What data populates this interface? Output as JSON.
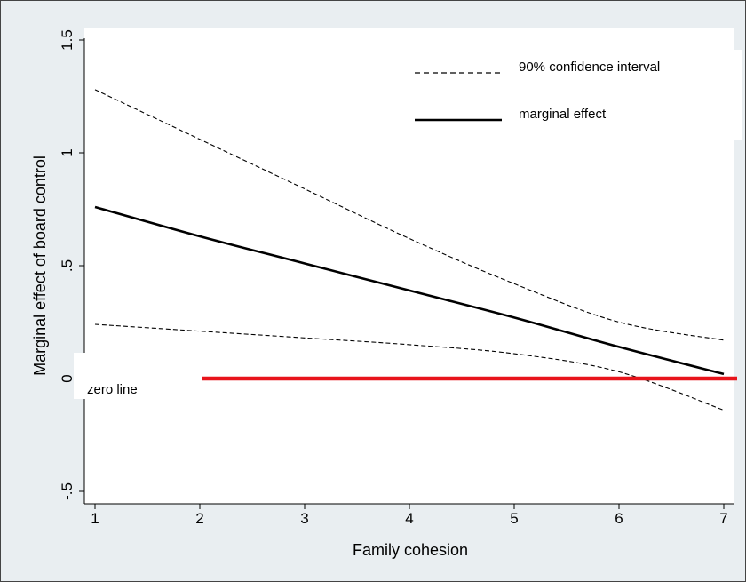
{
  "chart_data": {
    "type": "line",
    "title": "",
    "xlabel": "Family cohesion",
    "ylabel": "Marginal effect of board control",
    "xlim": [
      1,
      7
    ],
    "ylim": [
      -0.5,
      1.5
    ],
    "xticks": [
      1,
      2,
      3,
      4,
      5,
      6,
      7
    ],
    "xtick_labels": [
      "1",
      "2",
      "3",
      "4",
      "5",
      "6",
      "7"
    ],
    "yticks": [
      -0.5,
      0,
      0.5,
      1,
      1.5
    ],
    "ytick_labels": [
      "-.5",
      "0",
      ".5",
      "1",
      "1.5"
    ],
    "grid": false,
    "legend_position": "top-right",
    "series": [
      {
        "name": "90% confidence interval",
        "style": "dashed",
        "color": "#000000",
        "x": [
          1,
          2,
          3,
          4,
          5,
          6,
          7
        ],
        "y": [
          1.28,
          1.06,
          0.84,
          0.62,
          0.42,
          0.25,
          0.17
        ]
      },
      {
        "name": "90% confidence interval",
        "style": "dashed",
        "color": "#000000",
        "show_in_legend": false,
        "x": [
          1,
          2,
          3,
          4,
          5,
          6,
          7
        ],
        "y": [
          0.24,
          0.21,
          0.18,
          0.15,
          0.11,
          0.03,
          -0.14
        ]
      },
      {
        "name": "marginal effect",
        "style": "solid",
        "color": "#000000",
        "x": [
          1,
          2,
          3,
          4,
          5,
          6,
          7
        ],
        "y": [
          0.76,
          0.63,
          0.51,
          0.39,
          0.27,
          0.14,
          0.02
        ]
      }
    ],
    "reference_line": {
      "label": "zero line",
      "y": 0,
      "x_start": 2.02,
      "color": "#e8141b"
    },
    "legend": [
      {
        "label": "90% confidence interval",
        "style": "dashed"
      },
      {
        "label": "marginal effect",
        "style": "solid"
      }
    ],
    "colors": {
      "outer_background": "#e9eef1",
      "plot_background": "#ffffff",
      "zero_line": "#e8141b"
    }
  }
}
